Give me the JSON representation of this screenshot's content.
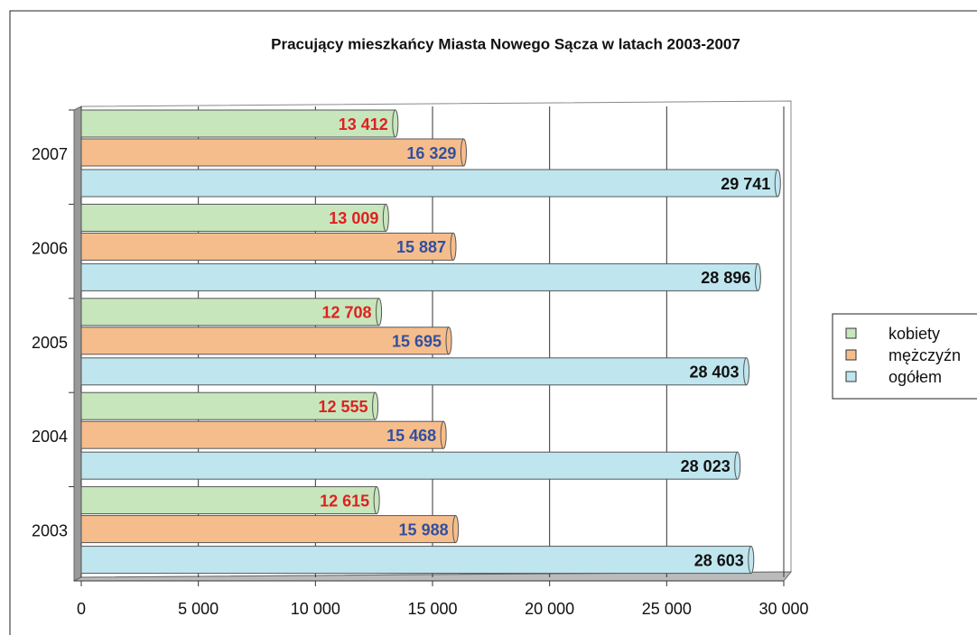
{
  "chart_data": {
    "type": "bar",
    "orientation": "horizontal",
    "title": "Pracujący mieszkańcy Miasta Nowego Sącza w latach 2003-2007",
    "categories": [
      "2003",
      "2004",
      "2005",
      "2006",
      "2007"
    ],
    "series": [
      {
        "name": "kobiety",
        "color": "#c8e6bc",
        "label_color": "#e02020",
        "values": [
          12615,
          12555,
          12708,
          13009,
          13412
        ],
        "value_labels": [
          "12 615",
          "12 555",
          "12 708",
          "13 009",
          "13 412"
        ]
      },
      {
        "name": "mężczyźn",
        "color": "#f6bd8c",
        "label_color": "#3050a0",
        "values": [
          15988,
          15468,
          15695,
          15887,
          16329
        ],
        "value_labels": [
          "15 988",
          "15 468",
          "15 695",
          "15 887",
          "16 329"
        ]
      },
      {
        "name": "ogółem",
        "color": "#bfe6ee",
        "label_color": "#111111",
        "values": [
          28603,
          28023,
          28403,
          28896,
          29741
        ],
        "value_labels": [
          "28 603",
          "28 023",
          "28 403",
          "28 896",
          "29 741"
        ]
      }
    ],
    "xlim": [
      0,
      30000
    ],
    "xticks": [
      0,
      {
        "value": 5000,
        "label": "5 000"
      },
      {
        "value": 10000,
        "label": "10 000"
      },
      {
        "value": 15000,
        "label": "15 000"
      },
      {
        "value": 20000,
        "label": "20 000"
      },
      {
        "value": 25000,
        "label": "25 000"
      },
      {
        "value": 30000,
        "label": "30 000"
      }
    ],
    "grid": true,
    "legend": "right"
  }
}
